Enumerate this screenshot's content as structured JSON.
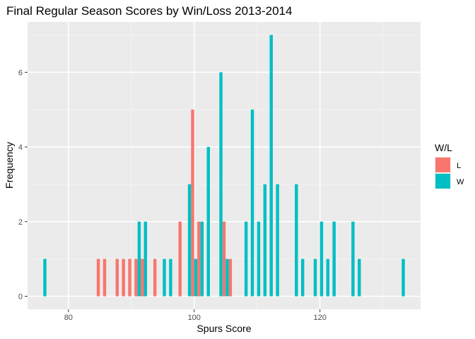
{
  "chart_data": {
    "type": "bar",
    "title": "Final Regular Season Scores by Win/Loss 2013-2014",
    "xlabel": "Spurs Score",
    "ylabel": "Frequency",
    "xlim": [
      73.5,
      136
    ],
    "ylim": [
      -0.35,
      7.35
    ],
    "x_ticks": [
      80,
      100,
      120
    ],
    "y_ticks": [
      0,
      2,
      4,
      6
    ],
    "grid": true,
    "legend": {
      "title": "W/L",
      "position": "right",
      "entries": [
        {
          "label": "L",
          "color": "#F8766D"
        },
        {
          "label": "W",
          "color": "#00BFC4"
        }
      ]
    },
    "bin_width": 1,
    "series": [
      {
        "name": "L",
        "color": "#F8766D",
        "points": [
          [
            85,
            1
          ],
          [
            86,
            1
          ],
          [
            88,
            1
          ],
          [
            89,
            1
          ],
          [
            90,
            1
          ],
          [
            91,
            1
          ],
          [
            92,
            1
          ],
          [
            94,
            1
          ],
          [
            98,
            2
          ],
          [
            100,
            5
          ],
          [
            101,
            2
          ],
          [
            105,
            2
          ],
          [
            106,
            1
          ]
        ]
      },
      {
        "name": "W",
        "color": "#00BFC4",
        "points": [
          [
            76,
            1
          ],
          [
            91,
            2
          ],
          [
            92,
            2
          ],
          [
            95,
            1
          ],
          [
            96,
            1
          ],
          [
            99,
            3
          ],
          [
            100,
            1
          ],
          [
            101,
            2
          ],
          [
            102,
            4
          ],
          [
            104,
            6
          ],
          [
            105,
            1
          ],
          [
            108,
            2
          ],
          [
            109,
            5
          ],
          [
            110,
            2
          ],
          [
            111,
            3
          ],
          [
            112,
            7
          ],
          [
            113,
            3
          ],
          [
            116,
            3
          ],
          [
            117,
            1
          ],
          [
            119,
            1
          ],
          [
            120,
            2
          ],
          [
            121,
            1
          ],
          [
            122,
            2
          ],
          [
            125,
            2
          ],
          [
            126,
            1
          ],
          [
            133,
            1
          ]
        ]
      }
    ]
  }
}
